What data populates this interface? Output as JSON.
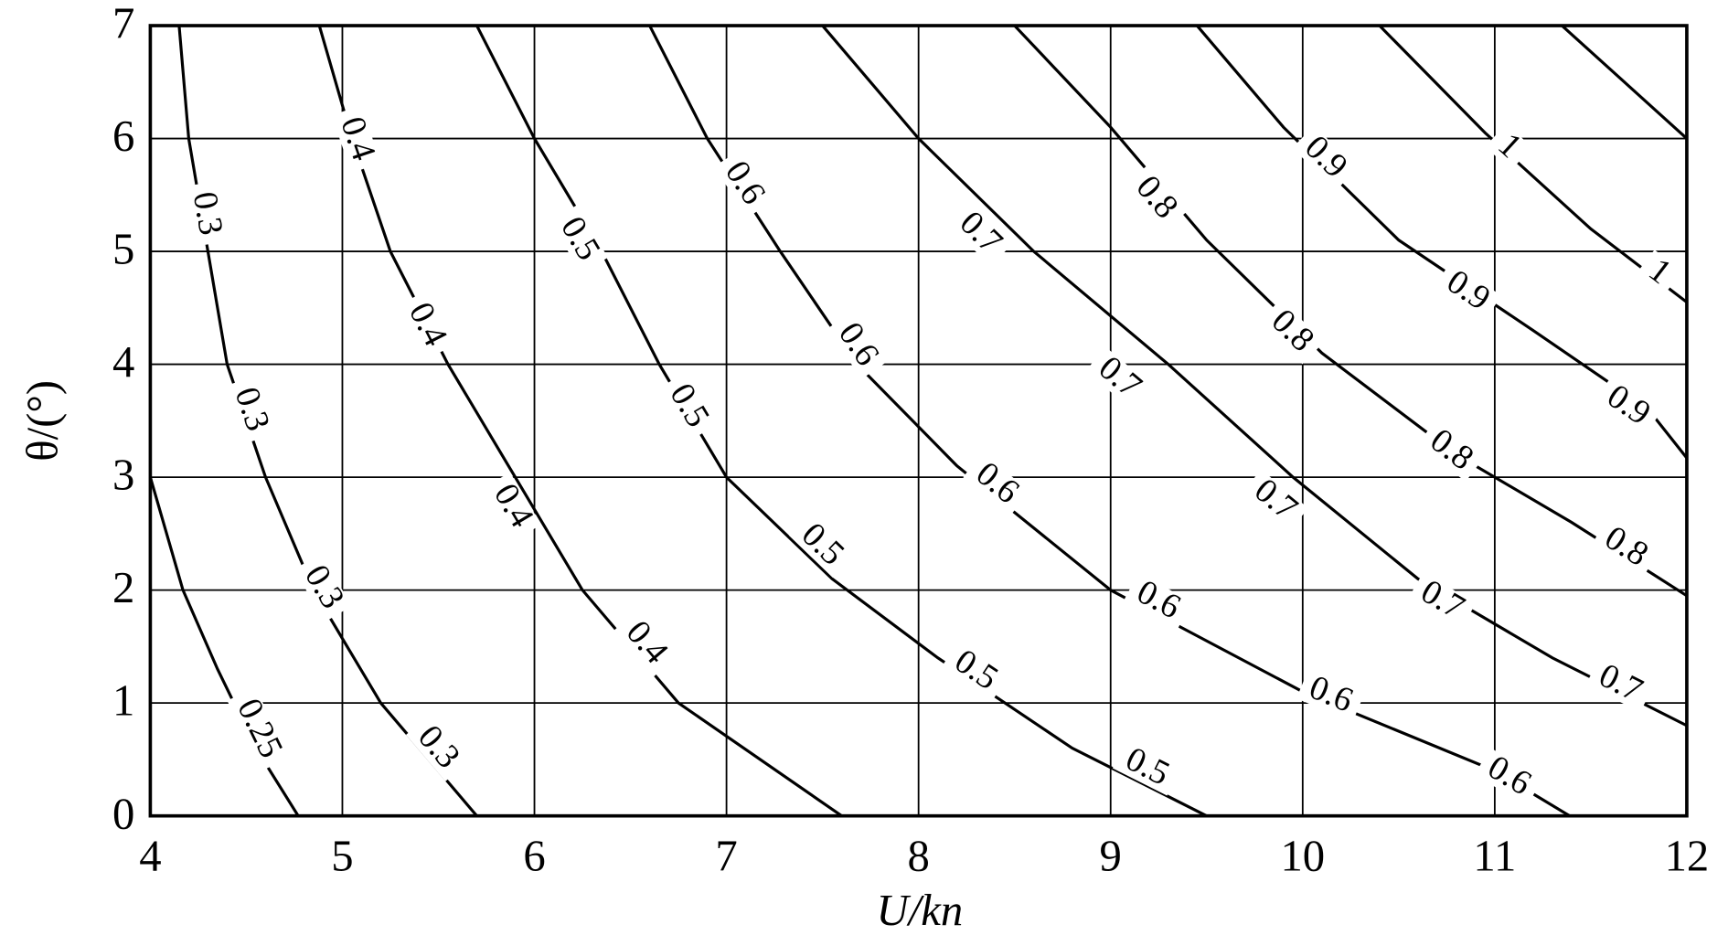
{
  "chart_data": {
    "type": "contour",
    "xlabel": "U/kn",
    "ylabel": "θ/(°)",
    "xlim": [
      4,
      12
    ],
    "ylim": [
      0,
      7
    ],
    "xticks": [
      4,
      5,
      6,
      7,
      8,
      9,
      10,
      11,
      12
    ],
    "yticks": [
      0,
      1,
      2,
      3,
      4,
      5,
      6,
      7
    ],
    "grid": true,
    "color": "#000000",
    "contours": [
      {
        "level": 0.25,
        "x": [
          4,
          4.17,
          4.35,
          4.55,
          4.77
        ],
        "y": [
          3,
          2,
          1.3,
          0.6,
          0
        ]
      },
      {
        "level": 0.3,
        "x": [
          4.15,
          4.2,
          4.3,
          4.4,
          4.6,
          4.85,
          5.2,
          5.7
        ],
        "y": [
          7,
          6,
          5,
          4,
          3,
          2,
          1,
          0
        ]
      },
      {
        "level": 0.4,
        "x": [
          4.88,
          5.05,
          5.25,
          5.55,
          5.9,
          6.25,
          6.75,
          7.6
        ],
        "y": [
          7,
          6,
          5,
          4,
          3,
          2,
          1,
          0
        ]
      },
      {
        "level": 0.5,
        "x": [
          5.7,
          6.0,
          6.35,
          6.65,
          7.0,
          7.55,
          8.1,
          8.8,
          9.5
        ],
        "y": [
          7,
          6,
          5,
          4,
          3,
          2.1,
          1.4,
          0.6,
          0
        ]
      },
      {
        "level": 0.6,
        "x": [
          6.6,
          6.9,
          7.28,
          7.68,
          8.2,
          9.0,
          10.0,
          11.0,
          11.39
        ],
        "y": [
          7,
          6,
          5,
          4,
          3.1,
          2,
          1.1,
          0.4,
          0
        ]
      },
      {
        "level": 0.7,
        "x": [
          7.5,
          8.0,
          8.6,
          9.3,
          9.95,
          10.6,
          11.3,
          12
        ],
        "y": [
          7,
          6,
          5,
          4,
          3,
          2.1,
          1.4,
          0.8
        ]
      },
      {
        "level": 0.8,
        "x": [
          8.5,
          9.0,
          9.5,
          10.1,
          10.8,
          11.4,
          12
        ],
        "y": [
          7,
          6.1,
          5.1,
          4.1,
          3.2,
          2.6,
          1.95
        ]
      },
      {
        "level": 0.9,
        "x": [
          9.45,
          9.9,
          10.5,
          11.2,
          11.8,
          12
        ],
        "y": [
          7,
          6.1,
          5.1,
          4.3,
          3.6,
          3.17
        ]
      },
      {
        "level": 1,
        "x": [
          10.4,
          10.95,
          11.5,
          12
        ],
        "y": [
          7,
          6.05,
          5.2,
          4.55
        ]
      },
      {
        "x": [
          11.35,
          12
        ],
        "y": [
          7,
          6
        ]
      }
    ]
  }
}
